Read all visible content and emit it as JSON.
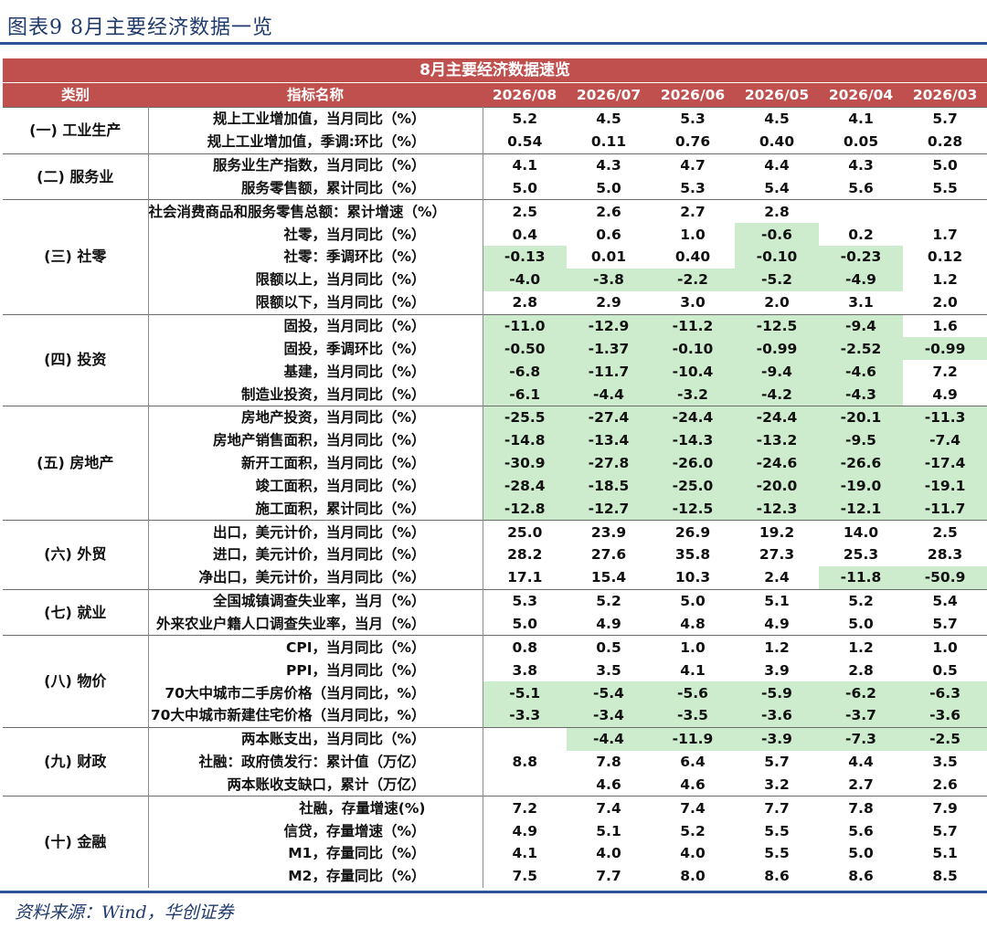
{
  "figure_title": "图表9  8月主要经济数据一览",
  "table": {
    "banner": "8月主要经济数据速览",
    "headers": {
      "category": "类别",
      "indicator": "指标名称",
      "periods": [
        "2026/08",
        "2026/07",
        "2026/06",
        "2026/05",
        "2026/04",
        "2026/03"
      ]
    },
    "highlight_color": "#cdeccd",
    "header_color": "#c0504d",
    "groups": [
      {
        "category": "(一) 工业生产",
        "rows": [
          {
            "indicator": "规上工业增加值，当月同比（%）",
            "values": [
              "5.2",
              "4.5",
              "5.3",
              "4.5",
              "4.1",
              "5.7"
            ],
            "highlight": [
              false,
              false,
              false,
              false,
              false,
              false
            ]
          },
          {
            "indicator": "规上工业增加值，季调:环比（%）",
            "values": [
              "0.54",
              "0.11",
              "0.76",
              "0.40",
              "0.05",
              "0.28"
            ],
            "highlight": [
              false,
              false,
              false,
              false,
              false,
              false
            ]
          }
        ]
      },
      {
        "category": "(二) 服务业",
        "rows": [
          {
            "indicator": "服务业生产指数，当月同比（%）",
            "values": [
              "4.1",
              "4.3",
              "4.7",
              "4.4",
              "4.3",
              "5.0"
            ],
            "highlight": [
              false,
              false,
              false,
              false,
              false,
              false
            ]
          },
          {
            "indicator": "服务零售额，累计同比（%）",
            "values": [
              "5.0",
              "5.0",
              "5.3",
              "5.4",
              "5.6",
              "5.5"
            ],
            "highlight": [
              false,
              false,
              false,
              false,
              false,
              false
            ]
          }
        ]
      },
      {
        "category": "(三) 社零",
        "rows": [
          {
            "indicator": "社会消费商品和服务零售总额：累计增速（%）",
            "values": [
              "2.5",
              "2.6",
              "2.7",
              "2.8",
              "",
              ""
            ],
            "highlight": [
              false,
              false,
              false,
              false,
              false,
              false
            ]
          },
          {
            "indicator": "社零，当月同比（%）",
            "values": [
              "0.4",
              "0.6",
              "1.0",
              "-0.6",
              "0.2",
              "1.7"
            ],
            "highlight": [
              false,
              false,
              false,
              true,
              false,
              false
            ]
          },
          {
            "indicator": "社零：季调环比（%）",
            "values": [
              "-0.13",
              "0.01",
              "0.40",
              "-0.10",
              "-0.23",
              "0.12"
            ],
            "highlight": [
              true,
              false,
              false,
              true,
              true,
              false
            ]
          },
          {
            "indicator": "限额以上，当月同比（%）",
            "values": [
              "-4.0",
              "-3.8",
              "-2.2",
              "-5.2",
              "-4.9",
              "1.2"
            ],
            "highlight": [
              true,
              true,
              true,
              true,
              true,
              false
            ]
          },
          {
            "indicator": "限额以下，当月同比（%）",
            "values": [
              "2.8",
              "2.9",
              "3.0",
              "2.0",
              "3.1",
              "2.0"
            ],
            "highlight": [
              false,
              false,
              false,
              false,
              false,
              false
            ]
          }
        ]
      },
      {
        "category": "(四) 投资",
        "rows": [
          {
            "indicator": "固投，当月同比（%）",
            "values": [
              "-11.0",
              "-12.9",
              "-11.2",
              "-12.5",
              "-9.4",
              "1.6"
            ],
            "highlight": [
              true,
              true,
              true,
              true,
              true,
              false
            ]
          },
          {
            "indicator": "固投，季调环比（%）",
            "values": [
              "-0.50",
              "-1.37",
              "-0.10",
              "-0.99",
              "-2.52",
              "-0.99"
            ],
            "highlight": [
              true,
              true,
              true,
              true,
              true,
              true
            ]
          },
          {
            "indicator": "基建，当月同比（%）",
            "values": [
              "-6.8",
              "-11.7",
              "-10.4",
              "-9.4",
              "-4.6",
              "7.2"
            ],
            "highlight": [
              true,
              true,
              true,
              true,
              true,
              false
            ]
          },
          {
            "indicator": "制造业投资，当月同比（%）",
            "values": [
              "-6.1",
              "-4.4",
              "-3.2",
              "-4.2",
              "-4.3",
              "4.9"
            ],
            "highlight": [
              true,
              true,
              true,
              true,
              true,
              false
            ]
          }
        ]
      },
      {
        "category": "(五) 房地产",
        "rows": [
          {
            "indicator": "房地产投资，当月同比（%）",
            "values": [
              "-25.5",
              "-27.4",
              "-24.4",
              "-24.4",
              "-20.1",
              "-11.3"
            ],
            "highlight": [
              true,
              true,
              true,
              true,
              true,
              true
            ]
          },
          {
            "indicator": "房地产销售面积，当月同比（%）",
            "values": [
              "-14.8",
              "-13.4",
              "-14.3",
              "-13.2",
              "-9.5",
              "-7.4"
            ],
            "highlight": [
              true,
              true,
              true,
              true,
              true,
              true
            ]
          },
          {
            "indicator": "新开工面积，当月同比（%）",
            "values": [
              "-30.9",
              "-27.8",
              "-26.0",
              "-24.6",
              "-26.6",
              "-17.4"
            ],
            "highlight": [
              true,
              true,
              true,
              true,
              true,
              true
            ]
          },
          {
            "indicator": "竣工面积，当月同比（%）",
            "values": [
              "-28.4",
              "-18.5",
              "-25.0",
              "-20.0",
              "-19.0",
              "-19.1"
            ],
            "highlight": [
              true,
              true,
              true,
              true,
              true,
              true
            ]
          },
          {
            "indicator": "施工面积，累计同比（%）",
            "values": [
              "-12.8",
              "-12.7",
              "-12.5",
              "-12.3",
              "-12.1",
              "-11.7"
            ],
            "highlight": [
              true,
              true,
              true,
              true,
              true,
              true
            ]
          }
        ]
      },
      {
        "category": "(六) 外贸",
        "rows": [
          {
            "indicator": "出口，美元计价，当月同比（%）",
            "values": [
              "25.0",
              "23.9",
              "26.9",
              "19.2",
              "14.0",
              "2.5"
            ],
            "highlight": [
              false,
              false,
              false,
              false,
              false,
              false
            ]
          },
          {
            "indicator": "进口，美元计价，当月同比（%）",
            "values": [
              "28.2",
              "27.6",
              "35.8",
              "27.3",
              "25.3",
              "28.3"
            ],
            "highlight": [
              false,
              false,
              false,
              false,
              false,
              false
            ]
          },
          {
            "indicator": "净出口，美元计价，当月同比（%）",
            "values": [
              "17.1",
              "15.4",
              "10.3",
              "2.4",
              "-11.8",
              "-50.9"
            ],
            "highlight": [
              false,
              false,
              false,
              false,
              true,
              true
            ]
          }
        ]
      },
      {
        "category": "(七) 就业",
        "rows": [
          {
            "indicator": "全国城镇调查失业率，当月（%）",
            "values": [
              "5.3",
              "5.2",
              "5.0",
              "5.1",
              "5.2",
              "5.4"
            ],
            "highlight": [
              false,
              false,
              false,
              false,
              false,
              false
            ]
          },
          {
            "indicator": "外来农业户籍人口调查失业率，当月（%）",
            "values": [
              "5.0",
              "4.9",
              "4.8",
              "4.9",
              "5.0",
              "5.7"
            ],
            "highlight": [
              false,
              false,
              false,
              false,
              false,
              false
            ]
          }
        ]
      },
      {
        "category": "(八) 物价",
        "rows": [
          {
            "indicator": "CPI，当月同比（%）",
            "values": [
              "0.8",
              "0.5",
              "1.0",
              "1.2",
              "1.2",
              "1.0"
            ],
            "highlight": [
              false,
              false,
              false,
              false,
              false,
              false
            ]
          },
          {
            "indicator": "PPI，当月同比（%）",
            "values": [
              "3.8",
              "3.5",
              "4.1",
              "3.9",
              "2.8",
              "0.5"
            ],
            "highlight": [
              false,
              false,
              false,
              false,
              false,
              false
            ]
          },
          {
            "indicator": "70大中城市二手房价格（当月同比，%）",
            "values": [
              "-5.1",
              "-5.4",
              "-5.6",
              "-5.9",
              "-6.2",
              "-6.3"
            ],
            "highlight": [
              true,
              true,
              true,
              true,
              true,
              true
            ]
          },
          {
            "indicator": "70大中城市新建住宅价格（当月同比，%）",
            "values": [
              "-3.3",
              "-3.4",
              "-3.5",
              "-3.6",
              "-3.7",
              "-3.6"
            ],
            "highlight": [
              true,
              true,
              true,
              true,
              true,
              true
            ]
          }
        ]
      },
      {
        "category": "(九) 财政",
        "rows": [
          {
            "indicator": "两本账支出，当月同比（%）",
            "values": [
              "",
              "-4.4",
              "-11.9",
              "-3.9",
              "-7.3",
              "-2.5"
            ],
            "highlight": [
              false,
              true,
              true,
              true,
              true,
              true
            ]
          },
          {
            "indicator": "社融：政府债发行：累计值（万亿）",
            "values": [
              "8.8",
              "7.8",
              "6.4",
              "5.7",
              "4.4",
              "3.5"
            ],
            "highlight": [
              false,
              false,
              false,
              false,
              false,
              false
            ]
          },
          {
            "indicator": "两本账收支缺口，累计（万亿）",
            "values": [
              "",
              "4.6",
              "4.6",
              "3.2",
              "2.7",
              "2.6"
            ],
            "highlight": [
              false,
              false,
              false,
              false,
              false,
              false
            ]
          }
        ]
      },
      {
        "category": "(十) 金融",
        "rows": [
          {
            "indicator": "社融，存量增速(%)",
            "values": [
              "7.2",
              "7.4",
              "7.4",
              "7.7",
              "7.8",
              "7.9"
            ],
            "highlight": [
              false,
              false,
              false,
              false,
              false,
              false
            ]
          },
          {
            "indicator": "信贷，存量增速（%）",
            "values": [
              "4.9",
              "5.1",
              "5.2",
              "5.5",
              "5.6",
              "5.7"
            ],
            "highlight": [
              false,
              false,
              false,
              false,
              false,
              false
            ]
          },
          {
            "indicator": "M1，存量同比（%）",
            "values": [
              "4.1",
              "4.0",
              "4.0",
              "5.5",
              "5.0",
              "5.1"
            ],
            "highlight": [
              false,
              false,
              false,
              false,
              false,
              false
            ]
          },
          {
            "indicator": "M2，存量同比（%）",
            "values": [
              "7.5",
              "7.7",
              "8.0",
              "8.6",
              "8.6",
              "8.5"
            ],
            "highlight": [
              false,
              false,
              false,
              false,
              false,
              false
            ]
          }
        ]
      }
    ]
  },
  "source": "资料来源：Wind，华创证券"
}
